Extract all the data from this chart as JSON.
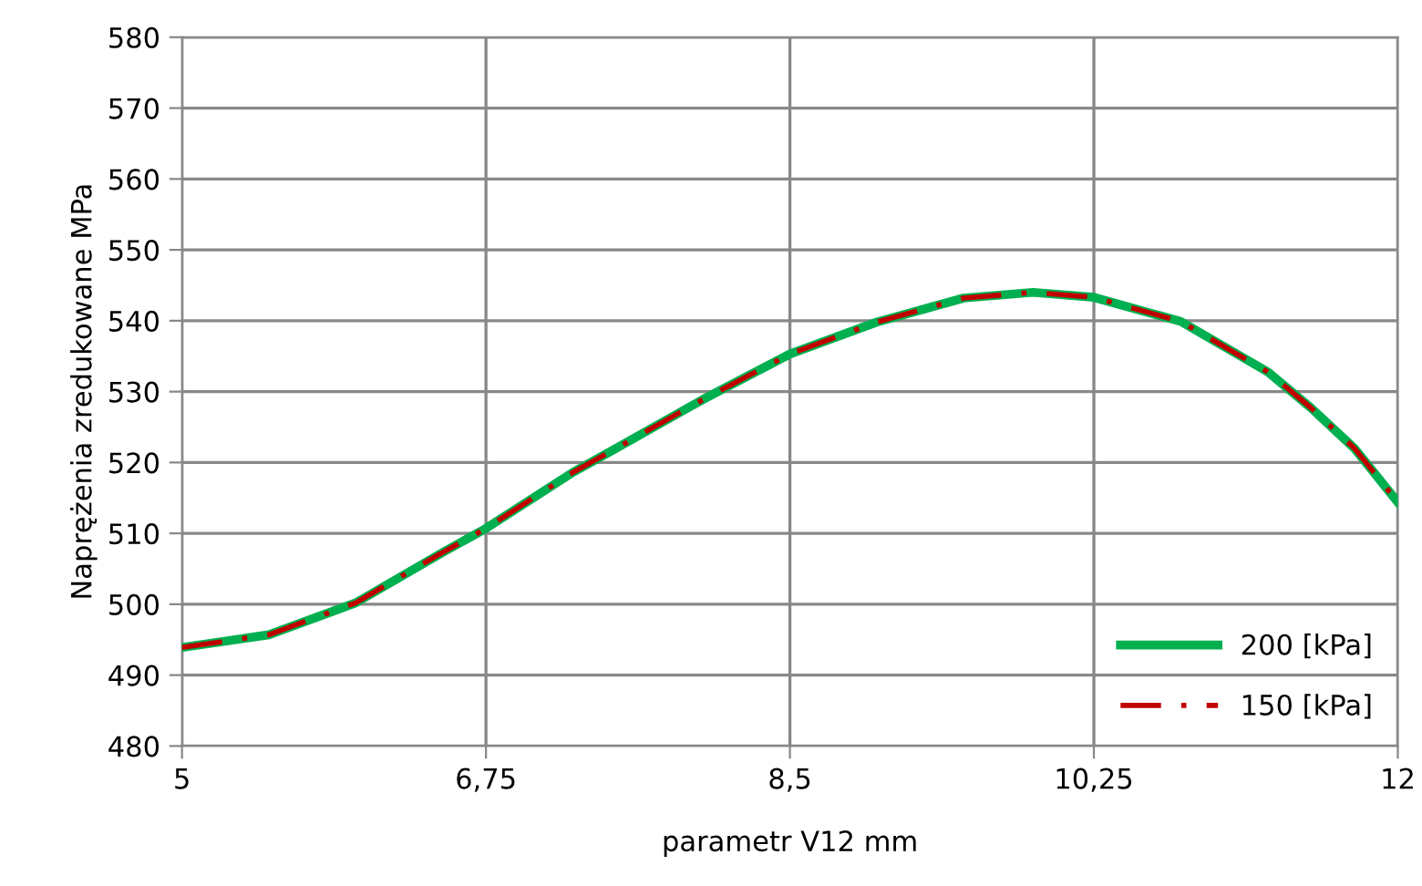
{
  "chart_data": {
    "type": "line",
    "xlabel": "parametr V12 mm",
    "ylabel": "Naprężenia zredukowane MPa",
    "x": [
      5,
      5.5,
      6,
      6.5,
      6.75,
      7.25,
      7.5,
      8,
      8.5,
      9,
      9.5,
      9.9,
      10.25,
      10.75,
      11.25,
      11.5,
      11.75,
      12
    ],
    "series": [
      {
        "name": "200 [kPa]",
        "color": "#00b050",
        "line_style": "solid",
        "values": [
          493.9,
          495.7,
          500.2,
          507.3,
          510.7,
          518.6,
          522,
          528.9,
          535.3,
          539.8,
          543.2,
          544,
          543.3,
          539.9,
          532.8,
          527.7,
          522,
          514.4
        ]
      },
      {
        "name": "150 [kPa]",
        "color": "#c00000",
        "line_style": "dashdot",
        "values": [
          493.9,
          495.7,
          500.2,
          507.3,
          510.7,
          518.6,
          522,
          528.9,
          535.3,
          539.8,
          543.2,
          544,
          543.3,
          539.9,
          532.8,
          527.7,
          522,
          514.4
        ]
      }
    ],
    "xlim": [
      5,
      12
    ],
    "xticks": [
      5,
      {
        "value": 6.75,
        "label": "6,75"
      },
      {
        "value": 8.5,
        "label": "8,5"
      },
      {
        "value": 10.25,
        "label": "10,25"
      },
      12
    ],
    "ylim": [
      480,
      580
    ],
    "yticks": [
      480,
      490,
      500,
      510,
      520,
      530,
      540,
      550,
      560,
      570,
      580
    ],
    "grid": true,
    "legend": "bottom right",
    "marker": "none"
  }
}
